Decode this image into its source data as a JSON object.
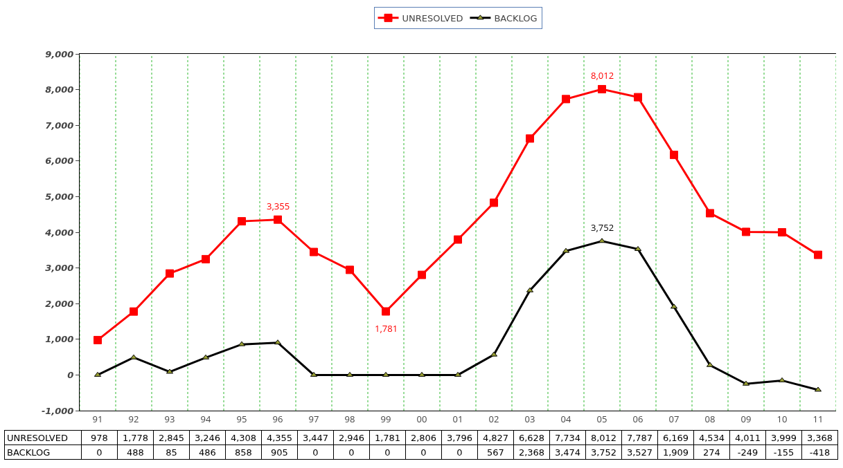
{
  "chart_data": {
    "type": "line",
    "categories": [
      "91",
      "92",
      "93",
      "94",
      "95",
      "96",
      "97",
      "98",
      "99",
      "00",
      "01",
      "02",
      "03",
      "04",
      "05",
      "06",
      "07",
      "08",
      "09",
      "10",
      "11"
    ],
    "series": [
      {
        "name": "UNRESOLVED",
        "color": "#ff0000",
        "marker": "square",
        "values": [
          978,
          1778,
          2845,
          3246,
          4308,
          4355,
          3447,
          2946,
          1781,
          2806,
          3796,
          4827,
          6628,
          7734,
          8012,
          7787,
          6169,
          4534,
          4011,
          3999,
          3368
        ],
        "value_labels": [
          "978",
          "1,778",
          "2,845",
          "3,246",
          "4,308",
          "4,355",
          "3,447",
          "2,946",
          "1,781",
          "2,806",
          "3,796",
          "4,827",
          "6,628",
          "7,734",
          "8,012",
          "7,787",
          "6,169",
          "4,534",
          "4,011",
          "3,999",
          "3,368"
        ]
      },
      {
        "name": "BACKLOG",
        "color": "#000000",
        "marker": "triangle",
        "values": [
          0,
          488,
          85,
          486,
          858,
          905,
          0,
          0,
          0,
          0,
          0,
          567,
          2368,
          3474,
          3752,
          3527,
          1909,
          274,
          -249,
          -155,
          -418
        ],
        "value_labels": [
          "0",
          "488",
          "85",
          "486",
          "858",
          "905",
          "0",
          "0",
          "0",
          "0",
          "0",
          "567",
          "2,368",
          "3,474",
          "3,752",
          "3,527",
          "1,909",
          "274",
          "-249",
          "-155",
          "-418"
        ]
      }
    ],
    "annotations": [
      {
        "text": "3,355",
        "x": "96",
        "y": 4355
      },
      {
        "text": "1,781",
        "x": "99",
        "y": 1781
      },
      {
        "text": "8,012",
        "x": "05",
        "y": 8012
      },
      {
        "text": "3,752",
        "x": "05",
        "y": 3752
      }
    ],
    "ylim": [
      -1000,
      9000
    ],
    "yticks": [
      {
        "value": -1000,
        "label": "-1,000"
      },
      0,
      {
        "value": 1000,
        "label": "1,000"
      },
      {
        "value": 2000,
        "label": "2,000"
      },
      {
        "value": 3000,
        "label": "3,000"
      },
      {
        "value": 4000,
        "label": "4,000"
      },
      {
        "value": 5000,
        "label": "5,000"
      },
      {
        "value": 6000,
        "label": "6,000"
      },
      {
        "value": 7000,
        "label": "7,000"
      },
      {
        "value": 8000,
        "label": "8,000"
      },
      {
        "value": 9000,
        "label": "9,000"
      }
    ],
    "grid": "x",
    "legend": "top",
    "line_style": "solid"
  }
}
